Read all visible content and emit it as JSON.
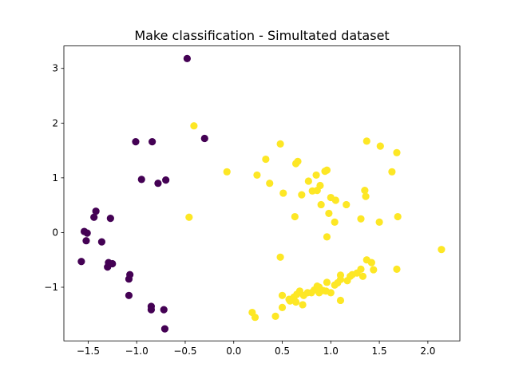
{
  "chart_data": {
    "type": "scatter",
    "title": "Make classification - Simultated dataset",
    "xlabel": "",
    "ylabel": "",
    "xlim": [
      -1.75,
      2.33
    ],
    "ylim": [
      -1.98,
      3.41
    ],
    "xticks": [
      -1.5,
      -1.0,
      -0.5,
      0.0,
      0.5,
      1.0,
      1.5,
      2.0
    ],
    "xtick_labels": [
      "−1.5",
      "−1.0",
      "−0.5",
      "0.0",
      "0.5",
      "1.0",
      "1.5",
      "2.0"
    ],
    "yticks": [
      -1,
      0,
      1,
      2,
      3
    ],
    "ytick_labels": [
      "−1",
      "0",
      "1",
      "2",
      "3"
    ],
    "grid": false,
    "legend": "none",
    "series": [
      {
        "class": 0,
        "color": "#440154",
        "points": [
          [
            -0.48,
            3.18
          ],
          [
            -0.3,
            1.72
          ],
          [
            -1.01,
            1.66
          ],
          [
            -0.84,
            1.66
          ],
          [
            -0.95,
            0.97
          ],
          [
            -0.78,
            0.9
          ],
          [
            -0.7,
            0.96
          ],
          [
            -1.42,
            0.39
          ],
          [
            -1.44,
            0.28
          ],
          [
            -1.27,
            0.26
          ],
          [
            -1.54,
            0.02
          ],
          [
            -1.51,
            -0.01
          ],
          [
            -1.52,
            -0.15
          ],
          [
            -1.36,
            -0.17
          ],
          [
            -1.57,
            -0.53
          ],
          [
            -1.29,
            -0.55
          ],
          [
            -1.25,
            -0.57
          ],
          [
            -1.3,
            -0.63
          ],
          [
            -1.07,
            -0.77
          ],
          [
            -1.08,
            -0.85
          ],
          [
            -1.08,
            -1.15
          ],
          [
            -0.85,
            -1.35
          ],
          [
            -0.85,
            -1.41
          ],
          [
            -0.72,
            -1.41
          ],
          [
            -0.71,
            -1.76
          ]
        ]
      },
      {
        "class": 1,
        "color": "#fde725",
        "points": [
          [
            -0.41,
            1.95
          ],
          [
            -0.46,
            0.28
          ],
          [
            -0.07,
            1.11
          ],
          [
            0.24,
            1.05
          ],
          [
            0.33,
            1.34
          ],
          [
            0.48,
            1.62
          ],
          [
            0.51,
            0.72
          ],
          [
            0.64,
            1.26
          ],
          [
            0.66,
            1.3
          ],
          [
            0.7,
            0.69
          ],
          [
            0.63,
            0.29
          ],
          [
            0.77,
            0.94
          ],
          [
            0.81,
            0.76
          ],
          [
            0.85,
            1.05
          ],
          [
            0.86,
            0.77
          ],
          [
            0.89,
            0.86
          ],
          [
            0.94,
            1.12
          ],
          [
            0.96,
            1.14
          ],
          [
            0.9,
            0.51
          ],
          [
            0.98,
            0.35
          ],
          [
            1.0,
            0.64
          ],
          [
            1.05,
            0.59
          ],
          [
            1.04,
            0.19
          ],
          [
            1.16,
            0.51
          ],
          [
            0.96,
            -0.08
          ],
          [
            1.31,
            0.25
          ],
          [
            1.35,
            0.77
          ],
          [
            1.36,
            0.66
          ],
          [
            1.37,
            1.67
          ],
          [
            1.51,
            1.58
          ],
          [
            1.5,
            0.19
          ],
          [
            1.63,
            1.11
          ],
          [
            1.68,
            1.46
          ],
          [
            1.69,
            0.29
          ],
          [
            2.14,
            -0.31
          ],
          [
            0.48,
            -0.45
          ],
          [
            0.37,
            0.9
          ],
          [
            1.37,
            -0.5
          ],
          [
            1.42,
            -0.55
          ],
          [
            1.44,
            -0.68
          ],
          [
            1.68,
            -0.67
          ],
          [
            1.1,
            -0.78
          ],
          [
            0.5,
            -1.15
          ],
          [
            0.57,
            -1.22
          ],
          [
            0.62,
            -1.18
          ],
          [
            0.65,
            -1.13
          ],
          [
            0.68,
            -1.07
          ],
          [
            0.72,
            -1.15
          ],
          [
            0.76,
            -1.1
          ],
          [
            0.8,
            -1.1
          ],
          [
            0.83,
            -1.05
          ],
          [
            0.86,
            -0.98
          ],
          [
            0.88,
            -1.1
          ],
          [
            0.92,
            -1.06
          ],
          [
            0.96,
            -0.91
          ],
          [
            1.0,
            -1.1
          ],
          [
            1.04,
            -0.96
          ],
          [
            1.07,
            -0.92
          ],
          [
            1.1,
            -0.86
          ],
          [
            1.17,
            -0.88
          ],
          [
            1.22,
            -0.77
          ],
          [
            1.27,
            -0.74
          ],
          [
            1.33,
            -0.8
          ],
          [
            1.1,
            -1.24
          ],
          [
            0.5,
            -1.37
          ],
          [
            0.58,
            -1.25
          ],
          [
            0.64,
            -1.27
          ],
          [
            0.71,
            -1.32
          ],
          [
            0.19,
            -1.46
          ],
          [
            0.22,
            -1.55
          ],
          [
            0.43,
            -1.53
          ],
          [
            1.31,
            -0.67
          ],
          [
            0.95,
            -1.07
          ],
          [
            0.88,
            -1.0
          ],
          [
            1.2,
            -0.8
          ]
        ]
      }
    ]
  }
}
